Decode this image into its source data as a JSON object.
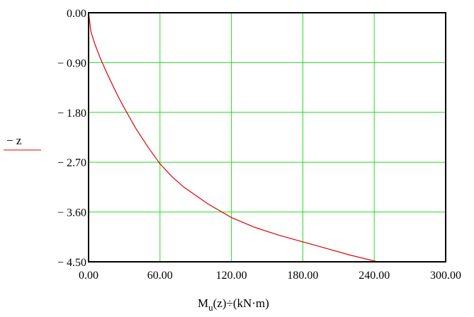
{
  "chart_data": {
    "type": "line",
    "title": "",
    "xlabel_main": "M",
    "xlabel_sub": "u",
    "xlabel_rest": "(z)÷(kN·m)",
    "ylabel": "− z",
    "xlim": [
      0,
      300
    ],
    "ylim": [
      -4.5,
      0
    ],
    "grid": true,
    "legend": "none",
    "x_ticks": [
      "0.00",
      "60.00",
      "120.00",
      "180.00",
      "240.00",
      "300.00"
    ],
    "y_ticks": [
      "0.00",
      "− 0.90",
      "− 1.80",
      "− 2.70",
      "− 3.60",
      "− 4.50"
    ],
    "series": [
      {
        "color": "#e00000",
        "x": [
          0,
          2,
          5,
          10,
          15,
          20,
          25,
          30,
          40,
          50,
          60,
          70,
          80,
          90,
          100,
          120,
          140,
          160,
          180,
          200,
          220,
          243
        ],
        "y": [
          0,
          -0.34,
          -0.55,
          -0.83,
          -1.07,
          -1.3,
          -1.52,
          -1.72,
          -2.1,
          -2.43,
          -2.73,
          -2.96,
          -3.15,
          -3.3,
          -3.45,
          -3.7,
          -3.88,
          -4.02,
          -4.14,
          -4.26,
          -4.38,
          -4.5
        ]
      }
    ],
    "colors": {
      "grid": "#22dd22",
      "frame": "#000000",
      "curve": "#e00000"
    }
  }
}
